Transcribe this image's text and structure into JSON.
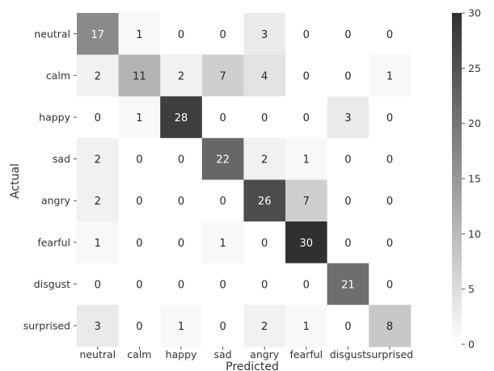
{
  "chart_data": {
    "type": "heatmap",
    "title": "",
    "xlabel": "Predicted",
    "ylabel": "Actual",
    "x_categories": [
      "neutral",
      "calm",
      "happy",
      "sad",
      "angry",
      "fearful",
      "disgust",
      "surprised"
    ],
    "y_categories": [
      "neutral",
      "calm",
      "happy",
      "sad",
      "angry",
      "fearful",
      "disgust",
      "surprised"
    ],
    "values": [
      [
        17,
        1,
        0,
        0,
        3,
        0,
        0,
        0
      ],
      [
        2,
        11,
        2,
        7,
        4,
        0,
        0,
        1
      ],
      [
        0,
        1,
        28,
        0,
        0,
        0,
        3,
        0
      ],
      [
        2,
        0,
        0,
        22,
        2,
        1,
        0,
        0
      ],
      [
        2,
        0,
        0,
        0,
        26,
        7,
        0,
        0
      ],
      [
        1,
        0,
        0,
        1,
        0,
        30,
        0,
        0
      ],
      [
        0,
        0,
        0,
        0,
        0,
        0,
        21,
        0
      ],
      [
        3,
        0,
        1,
        0,
        2,
        1,
        0,
        8
      ]
    ],
    "colorbar": {
      "min": 0,
      "max": 30,
      "ticks": [
        0,
        5,
        10,
        15,
        20,
        25,
        30
      ],
      "low_color": "#ffffff",
      "high_color": "#303030"
    },
    "annotations": true,
    "grid": false
  }
}
